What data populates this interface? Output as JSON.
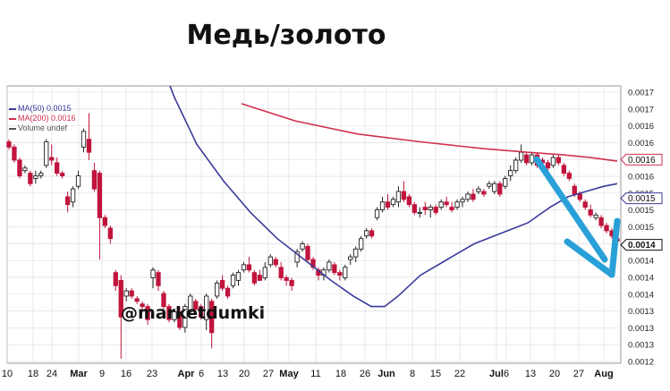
{
  "title": "Медь/золото",
  "watermark": "@marketdumki",
  "colors": {
    "up": "#222222",
    "down": "#c0143c",
    "ma50": "#3a3a9a",
    "ma200": "#d03050",
    "arrow": "#2aa0d8",
    "grid": "#d8d8d8"
  },
  "chart_data": {
    "type": "candlestick",
    "legend": [
      {
        "label": "MA(50) 0.0015",
        "color": "#3a3a9a"
      },
      {
        "label": "MA(200) 0.0016",
        "color": "#d03050"
      },
      {
        "label": "Volume undef",
        "color": "#555555"
      }
    ],
    "x_ticks": [
      "10",
      "18",
      "24",
      "Mar",
      "9",
      "16",
      "23",
      "Apr",
      "6",
      "13",
      "20",
      "27",
      "May",
      "11",
      "18",
      "26",
      "Jun",
      "8",
      "15",
      "22",
      "Jul",
      "6",
      "13",
      "20",
      "27",
      "Aug"
    ],
    "x_ticks_bold": [
      "Mar",
      "Apr",
      "May",
      "Jun",
      "Jul",
      "Aug"
    ],
    "y_ticks": [
      "0.0017",
      "0.0017",
      "0.0016",
      "0.0016",
      "0.0016",
      "0.0016",
      "0.0015",
      "0.0015",
      "0.0015",
      "0.0014",
      "0.0014",
      "0.0014",
      "0.0014",
      "0.0013",
      "0.0013",
      "0.0013",
      "0.0012"
    ],
    "y_price_min": 0.001205,
    "y_price_max": 0.00172,
    "price_tags": [
      {
        "label": "0.0016",
        "value": 0.001591,
        "color": "#d03050",
        "bold": false
      },
      {
        "label": "0.0015",
        "value": 0.001517,
        "color": "#3a3a9a",
        "bold": false
      },
      {
        "label": "0.0014",
        "value": 0.001428,
        "color": "#111111",
        "bold": true
      }
    ],
    "candles": [
      [
        0.001625,
        0.00163,
        0.00161,
        0.001615
      ],
      [
        0.001615,
        0.00162,
        0.001585,
        0.00159
      ],
      [
        0.00159,
        0.001595,
        0.001555,
        0.00156
      ],
      [
        0.00157,
        0.00158,
        0.001565,
        0.001575
      ],
      [
        0.001565,
        0.00157,
        0.00154,
        0.001545
      ],
      [
        0.001555,
        0.00157,
        0.001545,
        0.00156
      ],
      [
        0.00156,
        0.00157,
        0.001555,
        0.001565
      ],
      [
        0.00158,
        0.00163,
        0.001575,
        0.001625
      ],
      [
        0.001595,
        0.00162,
        0.00158,
        0.00159
      ],
      [
        0.001585,
        0.001595,
        0.00156,
        0.001565
      ],
      [
        0.001565,
        0.00157,
        0.001555,
        0.00156
      ],
      [
        0.00152,
        0.00153,
        0.00149,
        0.001505
      ],
      [
        0.00151,
        0.00154,
        0.0015,
        0.001535
      ],
      [
        0.00154,
        0.00157,
        0.001535,
        0.00156
      ],
      [
        0.001615,
        0.00165,
        0.001605,
        0.001645
      ],
      [
        0.00163,
        0.00168,
        0.00159,
        0.001605
      ],
      [
        0.00157,
        0.001585,
        0.00153,
        0.001535
      ],
      [
        0.001565,
        0.00157,
        0.0014,
        0.00148
      ],
      [
        0.00148,
        0.001485,
        0.00146,
        0.001465
      ],
      [
        0.00146,
        0.001465,
        0.00143,
        0.00144
      ],
      [
        0.001375,
        0.00138,
        0.00134,
        0.00135
      ],
      [
        0.00136,
        0.00137,
        0.00121,
        0.00129
      ],
      [
        0.00133,
        0.001345,
        0.00132,
        0.00134
      ],
      [
        0.00134,
        0.001345,
        0.001325,
        0.00133
      ],
      [
        0.001325,
        0.00133,
        0.001315,
        0.00132
      ],
      [
        0.001315,
        0.00132,
        0.0013,
        0.00131
      ],
      [
        0.00131,
        0.001315,
        0.001275,
        0.001285
      ],
      [
        0.001365,
        0.001385,
        0.001345,
        0.00138
      ],
      [
        0.001375,
        0.00138,
        0.00134,
        0.00135
      ],
      [
        0.001335,
        0.00134,
        0.001305,
        0.00131
      ],
      [
        0.00131,
        0.001315,
        0.00128,
        0.001285
      ],
      [
        0.001285,
        0.001305,
        0.00128,
        0.0013
      ],
      [
        0.0013,
        0.00131,
        0.001265,
        0.00127
      ],
      [
        0.00127,
        0.001315,
        0.00126,
        0.00131
      ],
      [
        0.0013,
        0.001335,
        0.001295,
        0.00133
      ],
      [
        0.00132,
        0.001325,
        0.0013,
        0.001305
      ],
      [
        0.00131,
        0.001315,
        0.001285,
        0.00129
      ],
      [
        0.001285,
        0.001335,
        0.001265,
        0.00133
      ],
      [
        0.00132,
        0.001325,
        0.00123,
        0.00126
      ],
      [
        0.00133,
        0.00136,
        0.001325,
        0.001355
      ],
      [
        0.00136,
        0.00137,
        0.00134,
        0.001345
      ],
      [
        0.001345,
        0.00135,
        0.001325,
        0.00133
      ],
      [
        0.00135,
        0.001375,
        0.001345,
        0.00137
      ],
      [
        0.00136,
        0.00138,
        0.00135,
        0.001375
      ],
      [
        0.00138,
        0.001395,
        0.001375,
        0.00139
      ],
      [
        0.00139,
        0.001405,
        0.001375,
        0.00138
      ],
      [
        0.001375,
        0.00138,
        0.00135,
        0.001355
      ],
      [
        0.00137,
        0.00138,
        0.00136,
        0.00136
      ],
      [
        0.001365,
        0.001395,
        0.00136,
        0.001385
      ],
      [
        0.00139,
        0.00141,
        0.001385,
        0.001405
      ],
      [
        0.0014,
        0.001405,
        0.001385,
        0.00139
      ],
      [
        0.001385,
        0.001395,
        0.00136,
        0.001365
      ],
      [
        0.001365,
        0.00137,
        0.00135,
        0.00136
      ],
      [
        0.00136,
        0.001365,
        0.00134,
        0.00135
      ],
      [
        0.001395,
        0.00142,
        0.001385,
        0.001415
      ],
      [
        0.00142,
        0.001435,
        0.001415,
        0.00143
      ],
      [
        0.001425,
        0.00143,
        0.001395,
        0.0014
      ],
      [
        0.0014,
        0.001405,
        0.00138,
        0.001385
      ],
      [
        0.00138,
        0.001385,
        0.00136,
        0.00137
      ],
      [
        0.00137,
        0.001385,
        0.00136,
        0.00138
      ],
      [
        0.00138,
        0.0014,
        0.001375,
        0.001395
      ],
      [
        0.00139,
        0.001395,
        0.00137,
        0.001375
      ],
      [
        0.001375,
        0.00138,
        0.00136,
        0.00137
      ],
      [
        0.001365,
        0.00139,
        0.00136,
        0.001385
      ],
      [
        0.0014,
        0.00141,
        0.00139,
        0.001405
      ],
      [
        0.001405,
        0.001425,
        0.001395,
        0.00142
      ],
      [
        0.00142,
        0.001445,
        0.001415,
        0.00144
      ],
      [
        0.001445,
        0.00146,
        0.00144,
        0.001455
      ],
      [
        0.001455,
        0.00146,
        0.00144,
        0.001445
      ],
      [
        0.00148,
        0.0015,
        0.001475,
        0.001495
      ],
      [
        0.001495,
        0.00152,
        0.00149,
        0.00151
      ],
      [
        0.00151,
        0.001525,
        0.001495,
        0.0015
      ],
      [
        0.001505,
        0.00152,
        0.0015,
        0.001515
      ],
      [
        0.00151,
        0.00154,
        0.0015,
        0.00153
      ],
      [
        0.00153,
        0.00155,
        0.00151,
        0.001515
      ],
      [
        0.00152,
        0.001525,
        0.0015,
        0.001505
      ],
      [
        0.001505,
        0.00151,
        0.001485,
        0.00149
      ],
      [
        0.00149,
        0.0015,
        0.00148,
        0.00149
      ],
      [
        0.0015,
        0.00151,
        0.001485,
        0.001495
      ],
      [
        0.001495,
        0.001505,
        0.00148,
        0.0015
      ],
      [
        0.0015,
        0.001505,
        0.001485,
        0.00149
      ],
      [
        0.0015,
        0.001515,
        0.001495,
        0.00151
      ],
      [
        0.00151,
        0.00152,
        0.0015,
        0.001505
      ],
      [
        0.0015,
        0.00151,
        0.00149,
        0.001495
      ],
      [
        0.0015,
        0.001515,
        0.001495,
        0.00151
      ],
      [
        0.00151,
        0.00152,
        0.0015,
        0.001515
      ],
      [
        0.001515,
        0.00153,
        0.00151,
        0.001525
      ],
      [
        0.001525,
        0.001535,
        0.00151,
        0.001515
      ],
      [
        0.00153,
        0.00154,
        0.001525,
        0.001535
      ],
      [
        0.00153,
        0.001535,
        0.00152,
        0.001525
      ],
      [
        0.00154,
        0.00155,
        0.001535,
        0.001545
      ],
      [
        0.00153,
        0.00155,
        0.001525,
        0.001545
      ],
      [
        0.001545,
        0.00155,
        0.00152,
        0.001525
      ],
      [
        0.00154,
        0.00156,
        0.001535,
        0.001555
      ],
      [
        0.00156,
        0.00158,
        0.00155,
        0.00157
      ],
      [
        0.00157,
        0.001595,
        0.001565,
        0.00159
      ],
      [
        0.00159,
        0.00162,
        0.001585,
        0.001605
      ],
      [
        0.0016,
        0.001605,
        0.00158,
        0.001585
      ],
      [
        0.001585,
        0.001605,
        0.00158,
        0.0016
      ],
      [
        0.0016,
        0.001605,
        0.001575,
        0.00158
      ],
      [
        0.00159,
        0.001595,
        0.001575,
        0.001585
      ],
      [
        0.001585,
        0.00159,
        0.00157,
        0.001575
      ],
      [
        0.00158,
        0.0016,
        0.001575,
        0.001595
      ],
      [
        0.001595,
        0.0016,
        0.00158,
        0.001585
      ],
      [
        0.00158,
        0.001585,
        0.00156,
        0.001565
      ],
      [
        0.001565,
        0.00157,
        0.00155,
        0.001555
      ],
      [
        0.00154,
        0.001545,
        0.00152,
        0.001525
      ],
      [
        0.001525,
        0.00153,
        0.00151,
        0.001515
      ],
      [
        0.00151,
        0.001515,
        0.001495,
        0.0015
      ],
      [
        0.001495,
        0.001505,
        0.00148,
        0.001485
      ],
      [
        0.00148,
        0.00149,
        0.001475,
        0.001485
      ],
      [
        0.00148,
        0.001485,
        0.00146,
        0.001465
      ],
      [
        0.001465,
        0.00147,
        0.00145,
        0.001455
      ],
      [
        0.001455,
        0.00146,
        0.00144,
        0.001445
      ],
      [
        0.00144,
        0.00145,
        0.00143,
        0.001435
      ]
    ],
    "ma50": [
      [
        145,
        0.00195
      ],
      [
        170,
        0.00182
      ],
      [
        195,
        0.00171
      ],
      [
        220,
        0.00162
      ],
      [
        250,
        0.00155
      ],
      [
        280,
        0.00149
      ],
      [
        310,
        0.00144
      ],
      [
        340,
        0.0014
      ],
      [
        370,
        0.00136
      ],
      [
        395,
        0.00133
      ],
      [
        415,
        0.00131
      ],
      [
        430,
        0.00131
      ],
      [
        445,
        0.00133
      ],
      [
        470,
        0.00137
      ],
      [
        500,
        0.0014
      ],
      [
        530,
        0.00143
      ],
      [
        560,
        0.00145
      ],
      [
        590,
        0.00147
      ],
      [
        615,
        0.0015
      ],
      [
        635,
        0.00152
      ],
      [
        655,
        0.00153
      ],
      [
        675,
        0.00154
      ],
      [
        690,
        0.001545
      ]
    ],
    "ma200": [
      [
        270,
        0.001698
      ],
      [
        330,
        0.001665
      ],
      [
        400,
        0.00164
      ],
      [
        470,
        0.001625
      ],
      [
        540,
        0.001612
      ],
      [
        590,
        0.001605
      ],
      [
        630,
        0.0016
      ],
      [
        660,
        0.001595
      ],
      [
        690,
        0.001588
      ]
    ]
  }
}
